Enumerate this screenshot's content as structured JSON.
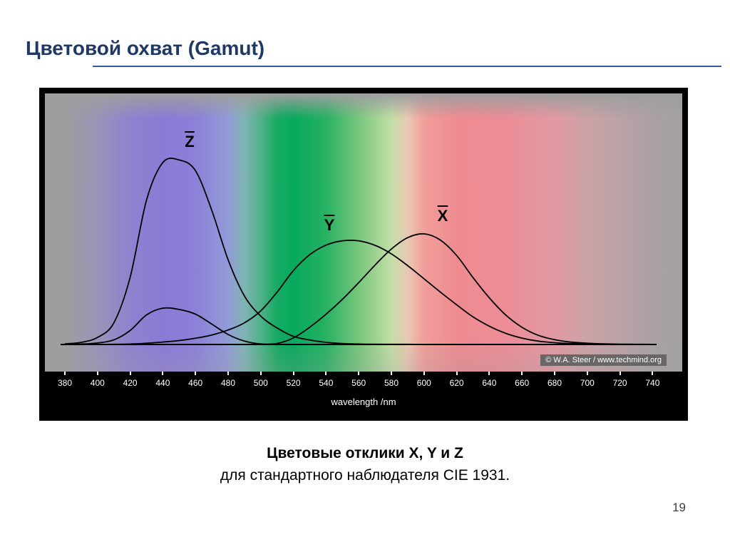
{
  "slide": {
    "title": "Цветовой охват (Gamut)",
    "caption_line1": "Цветовые отклики X, Y и Z",
    "caption_line2": "для стандартного наблюдателя CIE 1931.",
    "page_number": "19"
  },
  "colors": {
    "title_text": "#1f3864",
    "title_rule": "#3a57a8",
    "figure_frame": "#000000",
    "plot_background_gray": "#9e9e9e",
    "curve_stroke": "#000000"
  },
  "figure": {
    "credit": "© W.A. Steer / www.techmind.org",
    "xlabel": "wavelength /nm",
    "curve_labels": {
      "z": "Z",
      "y": "Y",
      "x": "X"
    }
  },
  "chart_data": {
    "type": "line",
    "title": "CIE 1931 standard observer colour matching functions over visible spectrum background",
    "xlabel": "wavelength /nm",
    "ylabel": "",
    "xlim": [
      380,
      740
    ],
    "ylim": [
      0,
      1.9
    ],
    "grid": false,
    "legend_position": "labels at curve peaks",
    "x_ticks": [
      380,
      400,
      420,
      440,
      460,
      480,
      500,
      520,
      540,
      560,
      580,
      600,
      620,
      640,
      660,
      680,
      700,
      720,
      740
    ],
    "x": [
      380,
      390,
      400,
      410,
      420,
      430,
      440,
      450,
      460,
      470,
      480,
      490,
      500,
      510,
      520,
      530,
      540,
      550,
      560,
      570,
      580,
      590,
      600,
      610,
      620,
      630,
      640,
      650,
      660,
      670,
      680,
      690,
      700,
      710,
      720,
      730,
      740
    ],
    "series": [
      {
        "name": "x-bar",
        "values": [
          0.0014,
          0.0042,
          0.0143,
          0.0435,
          0.1344,
          0.2839,
          0.3483,
          0.3362,
          0.2908,
          0.1954,
          0.0956,
          0.032,
          0.0049,
          0.0093,
          0.0633,
          0.1655,
          0.2904,
          0.4334,
          0.5945,
          0.7621,
          0.9163,
          1.0263,
          1.0622,
          1.0026,
          0.8544,
          0.6424,
          0.4479,
          0.2835,
          0.1649,
          0.0874,
          0.0468,
          0.0227,
          0.0114,
          0.0058,
          0.0029,
          0.0014,
          0.0007
        ]
      },
      {
        "name": "y-bar",
        "values": [
          0.0,
          0.0001,
          0.0004,
          0.0012,
          0.004,
          0.0116,
          0.023,
          0.038,
          0.06,
          0.091,
          0.139,
          0.208,
          0.323,
          0.503,
          0.71,
          0.862,
          0.954,
          0.995,
          0.995,
          0.952,
          0.87,
          0.757,
          0.631,
          0.503,
          0.381,
          0.265,
          0.175,
          0.107,
          0.061,
          0.032,
          0.017,
          0.0082,
          0.0041,
          0.0021,
          0.001,
          0.0005,
          0.0003
        ]
      },
      {
        "name": "z-bar",
        "values": [
          0.0065,
          0.0201,
          0.0679,
          0.2074,
          0.6456,
          1.3856,
          1.7471,
          1.7721,
          1.6692,
          1.2876,
          0.813,
          0.4652,
          0.272,
          0.1582,
          0.0782,
          0.0422,
          0.0203,
          0.0087,
          0.0039,
          0.0021,
          0.0017,
          0.0011,
          0.0008,
          0.0003,
          0.0002,
          0.0001,
          0,
          0,
          0,
          0,
          0,
          0,
          0,
          0,
          0,
          0,
          0
        ]
      }
    ]
  }
}
